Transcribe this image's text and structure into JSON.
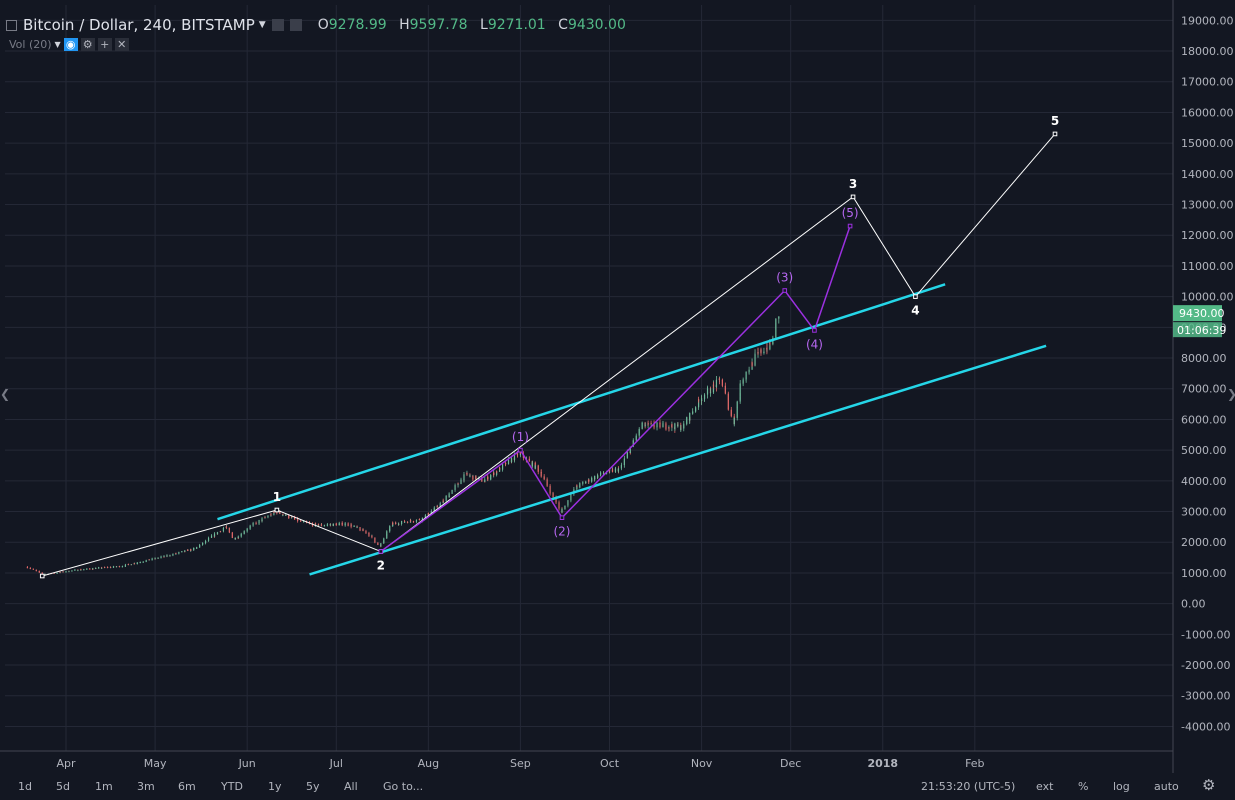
{
  "header": {
    "symbol": "Bitcoin / Dollar, 240, BITSTAMP",
    "ohlc": [
      {
        "key": "O",
        "value": "9278.99"
      },
      {
        "key": "H",
        "value": "9597.78"
      },
      {
        "key": "L",
        "value": "9271.01"
      },
      {
        "key": "C",
        "value": "9430.00"
      }
    ]
  },
  "indicator": {
    "label": "Vol (20)"
  },
  "price_badge": {
    "value": "9430.00",
    "countdown": "01:06:39"
  },
  "toolbar": {
    "timeframes": [
      "1d",
      "5d",
      "1m",
      "3m",
      "6m",
      "YTD",
      "1y",
      "5y",
      "All"
    ],
    "goto_label": "Go to...",
    "clock": "21:53:20 (UTC-5)",
    "right_buttons": [
      "ext",
      "%",
      "log",
      "auto"
    ]
  },
  "colors": {
    "background": "#131722",
    "channel": "#25d6e8",
    "primary_wave": "#ffffff",
    "sub_wave": "#9b30e0",
    "candle_up": "#6fb99a",
    "candle_down": "#e26a6a",
    "badge": "#53b987"
  },
  "chart_data": {
    "type": "candlestick",
    "y_axis_ticks": [
      "19000.00",
      "18000.00",
      "17000.00",
      "16000.00",
      "15000.00",
      "14000.00",
      "13000.00",
      "12000.00",
      "11000.00",
      "10000.00",
      "9000.00",
      "8000.00",
      "7000.00",
      "6000.00",
      "5000.00",
      "4000.00",
      "3000.00",
      "2000.00",
      "1000.00",
      "0.00",
      "-1000.00",
      "-2000.00",
      "-3000.00",
      "-4000.00"
    ],
    "ylim": [
      -4800,
      19500
    ],
    "x_axis_ticks": [
      "Apr",
      "May",
      "Jun",
      "Jul",
      "Aug",
      "Sep",
      "Oct",
      "Nov",
      "Dec",
      "2018",
      "Feb"
    ],
    "price_path": [
      [
        "2017-03-19",
        1200
      ],
      [
        "2017-03-25",
        950
      ],
      [
        "2017-04-05",
        1100
      ],
      [
        "2017-04-20",
        1220
      ],
      [
        "2017-05-05",
        1550
      ],
      [
        "2017-05-15",
        1800
      ],
      [
        "2017-05-25",
        2500
      ],
      [
        "2017-05-28",
        2100
      ],
      [
        "2017-06-02",
        2500
      ],
      [
        "2017-06-11",
        3000
      ],
      [
        "2017-06-20",
        2650
      ],
      [
        "2017-06-25",
        2550
      ],
      [
        "2017-07-05",
        2600
      ],
      [
        "2017-07-12",
        2300
      ],
      [
        "2017-07-16",
        1850
      ],
      [
        "2017-07-20",
        2600
      ],
      [
        "2017-07-30",
        2750
      ],
      [
        "2017-08-05",
        3200
      ],
      [
        "2017-08-14",
        4200
      ],
      [
        "2017-08-20",
        4000
      ],
      [
        "2017-09-01",
        4900
      ],
      [
        "2017-09-08",
        4300
      ],
      [
        "2017-09-15",
        3000
      ],
      [
        "2017-09-20",
        3800
      ],
      [
        "2017-09-28",
        4200
      ],
      [
        "2017-10-05",
        4400
      ],
      [
        "2017-10-12",
        5800
      ],
      [
        "2017-10-20",
        5800
      ],
      [
        "2017-10-26",
        5750
      ],
      [
        "2017-11-01",
        6700
      ],
      [
        "2017-11-08",
        7300
      ],
      [
        "2017-11-12",
        5900
      ],
      [
        "2017-11-15",
        7300
      ],
      [
        "2017-11-20",
        8100
      ],
      [
        "2017-11-25",
        8500
      ],
      [
        "2017-11-27",
        9430
      ]
    ],
    "channel_lines": [
      {
        "from": [
          "2017-05-22",
          2750
        ],
        "to": [
          "2018-01-22",
          10400
        ]
      },
      {
        "from": [
          "2017-06-22",
          950
        ],
        "to": [
          "2018-02-25",
          8400
        ]
      }
    ],
    "primary_wave": [
      {
        "label": "",
        "date": "2017-03-24",
        "price": 900
      },
      {
        "label": "1",
        "date": "2017-06-11",
        "price": 3050
      },
      {
        "label": "2",
        "date": "2017-07-16",
        "price": 1700
      },
      {
        "label": "3",
        "date": "2017-12-22",
        "price": 13250
      },
      {
        "label": "4",
        "date": "2018-01-12",
        "price": 10000
      },
      {
        "label": "5",
        "date": "2018-02-28",
        "price": 15300
      }
    ],
    "sub_wave": [
      {
        "label": "",
        "date": "2017-07-16",
        "price": 1700
      },
      {
        "label": "(1)",
        "date": "2017-09-01",
        "price": 5000
      },
      {
        "label": "(2)",
        "date": "2017-09-15",
        "price": 2800
      },
      {
        "label": "(3)",
        "date": "2017-11-29",
        "price": 10200
      },
      {
        "label": "(4)",
        "date": "2017-12-09",
        "price": 8900
      },
      {
        "label": "(5)",
        "date": "2017-12-21",
        "price": 12300
      }
    ]
  }
}
